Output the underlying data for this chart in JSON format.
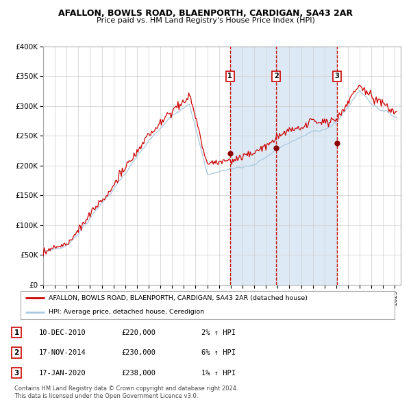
{
  "title1": "AFALLON, BOWLS ROAD, BLAENPORTH, CARDIGAN, SA43 2AR",
  "title2": "Price paid vs. HM Land Registry's House Price Index (HPI)",
  "ylim": [
    0,
    400000
  ],
  "yticks": [
    0,
    50000,
    100000,
    150000,
    200000,
    250000,
    300000,
    350000,
    400000
  ],
  "ytick_labels": [
    "£0",
    "£50K",
    "£100K",
    "£150K",
    "£200K",
    "£250K",
    "£300K",
    "£350K",
    "£400K"
  ],
  "hpi_color": "#aac8e0",
  "price_color": "#cc0000",
  "sale_color": "#8b0000",
  "vline_color": "#cc0000",
  "shade_color": "#ddeaf5",
  "grid_color": "#cccccc",
  "bg_color": "#ffffff",
  "legend1": "AFALLON, BOWLS ROAD, BLAENPORTH, CARDIGAN, SA43 2AR (detached house)",
  "legend2": "HPI: Average price, detached house, Ceredigion",
  "sale1_x": 2010.94,
  "sale1_price": 220000,
  "sale2_x": 2014.88,
  "sale2_price": 230000,
  "sale3_x": 2020.05,
  "sale3_price": 238000,
  "footnote1": "Contains HM Land Registry data © Crown copyright and database right 2024.",
  "footnote2": "This data is licensed under the Open Government Licence v3.0.",
  "table_row1": [
    "1",
    "10-DEC-2010",
    "£220,000",
    "2% ↑ HPI"
  ],
  "table_row2": [
    "2",
    "17-NOV-2014",
    "£230,000",
    "6% ↑ HPI"
  ],
  "table_row3": [
    "3",
    "17-JAN-2020",
    "£238,000",
    "1% ↑ HPI"
  ]
}
